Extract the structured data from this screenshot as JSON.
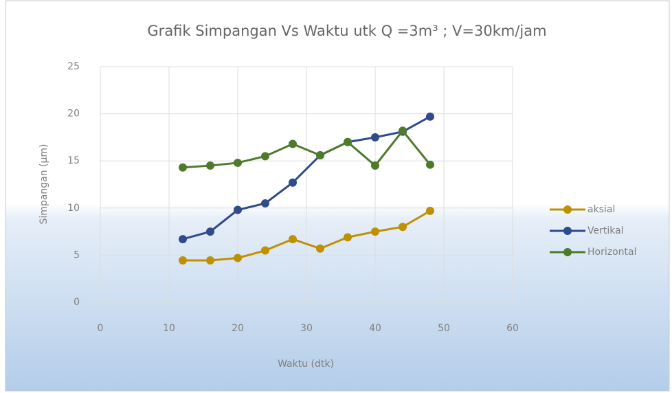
{
  "chart_data": {
    "type": "line",
    "title": "Grafik Simpangan Vs Waktu utk Q =3m³ ;  V=30km/jam",
    "xlabel": "Waktu (dtk)",
    "ylabel": "Simpangan (µm)",
    "x": [
      12,
      16,
      20,
      24,
      28,
      32,
      36,
      40,
      44,
      48
    ],
    "series": [
      {
        "name": "aksial",
        "color": "#bf9000",
        "values": [
          4.45,
          4.45,
          4.7,
          5.5,
          6.7,
          5.7,
          6.9,
          7.5,
          8.0,
          9.7
        ]
      },
      {
        "name": "Vertikal",
        "color": "#2f4b8c",
        "values": [
          6.7,
          7.5,
          9.8,
          10.5,
          12.7,
          15.6,
          17.0,
          17.5,
          18.1,
          19.7
        ]
      },
      {
        "name": "Horizontal",
        "color": "#4e7a2c",
        "values": [
          14.3,
          14.5,
          14.8,
          15.5,
          16.8,
          15.6,
          17.0,
          14.5,
          18.2,
          14.6
        ]
      }
    ],
    "xlim": [
      0,
      60
    ],
    "xticks": [
      0,
      10,
      20,
      30,
      40,
      50,
      60
    ],
    "ylim": [
      0,
      25
    ],
    "yticks": [
      0,
      5,
      10,
      15,
      20,
      25
    ],
    "grid": true,
    "legend": "right"
  }
}
